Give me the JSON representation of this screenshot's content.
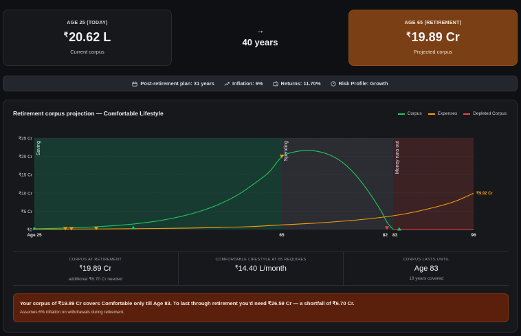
{
  "summary": {
    "now": {
      "label": "AGE 25 (TODAY)",
      "currency": "₹",
      "amount": "20.62 L",
      "sub": "Current corpus"
    },
    "arrow": "→",
    "years": "40 years",
    "retirement": {
      "label": "AGE 65 (RETIREMENT)",
      "currency": "₹",
      "amount": "19.89 Cr",
      "sub": "Projected corpus"
    }
  },
  "assumptions": [
    {
      "icon": "calendar-icon",
      "text": "Post-retirement plan: 31 years"
    },
    {
      "icon": "trend-icon",
      "text": "Inflation: 6%"
    },
    {
      "icon": "wallet-icon",
      "text": "Returns: 11.70%"
    },
    {
      "icon": "gauge-icon",
      "text": "Risk Profile: Growth"
    }
  ],
  "panel": {
    "title": "Retirement corpus projection — Comfortable Lifestyle",
    "legend": [
      {
        "name": "Corpus",
        "color": "#22c55e"
      },
      {
        "name": "Expenses",
        "color": "#f59e0b"
      },
      {
        "name": "Depleted Corpus",
        "color": "#ef4444"
      }
    ]
  },
  "chart_data": {
    "type": "line",
    "title": "Retirement corpus projection — Comfortable Lifestyle",
    "xlabel": "",
    "ylabel": "",
    "x_range": [
      25,
      96
    ],
    "ylim": [
      0,
      25
    ],
    "y_unit": "Cr",
    "y_ticks": [
      "₹0",
      "₹5 Cr",
      "₹10 Cr",
      "₹15 Cr",
      "₹20 Cr",
      "₹25 Cr"
    ],
    "x_tick_labels": [
      {
        "x": 25,
        "label": "Age 25"
      },
      {
        "x": 65,
        "label": "65"
      },
      {
        "x": 82,
        "label": "82"
      },
      {
        "x": 83,
        "label": "83"
      },
      {
        "x": 96,
        "label": "96"
      }
    ],
    "phases": [
      {
        "label": "Saving",
        "from": 25,
        "to": 65,
        "color": "#173b30"
      },
      {
        "label": "Spending",
        "from": 65,
        "to": 83,
        "color": "#2b2d33"
      },
      {
        "label": "Money runs out",
        "from": 83,
        "to": 96,
        "color": "#3d2224"
      }
    ],
    "series": [
      {
        "name": "Corpus",
        "color": "#22c55e",
        "points": [
          [
            25,
            0.21
          ],
          [
            28,
            0.3
          ],
          [
            31,
            0.45
          ],
          [
            34,
            0.66
          ],
          [
            37,
            0.95
          ],
          [
            40,
            1.35
          ],
          [
            43,
            1.9
          ],
          [
            46,
            2.65
          ],
          [
            49,
            3.7
          ],
          [
            52,
            5.1
          ],
          [
            55,
            7.0
          ],
          [
            58,
            9.6
          ],
          [
            61,
            13.1
          ],
          [
            63,
            15.8
          ],
          [
            65,
            19.89
          ],
          [
            67,
            21.2
          ],
          [
            69,
            21.6
          ],
          [
            71,
            21.3
          ],
          [
            73,
            20.2
          ],
          [
            75,
            18.1
          ],
          [
            77,
            14.8
          ],
          [
            79,
            10.4
          ],
          [
            81,
            5.2
          ],
          [
            82,
            2.0
          ],
          [
            83,
            0
          ]
        ]
      },
      {
        "name": "Expenses",
        "color": "#f59e0b",
        "points": [
          [
            25,
            0.07
          ],
          [
            30,
            0.1
          ],
          [
            35,
            0.14
          ],
          [
            40,
            0.2
          ],
          [
            45,
            0.28
          ],
          [
            50,
            0.39
          ],
          [
            55,
            0.55
          ],
          [
            60,
            0.8
          ],
          [
            65,
            1.25
          ],
          [
            70,
            1.7
          ],
          [
            75,
            2.3
          ],
          [
            80,
            3.1
          ],
          [
            85,
            4.3
          ],
          [
            90,
            6.2
          ],
          [
            93,
            7.7
          ],
          [
            96,
            9.92
          ]
        ],
        "end_label": "₹9.92 Cr"
      },
      {
        "name": "Depleted Corpus",
        "color": "#ef4444",
        "points": [
          [
            83,
            0
          ],
          [
            96,
            0
          ]
        ]
      }
    ],
    "markers": [
      {
        "x": 25,
        "y": 0.21,
        "shape": "dot",
        "color": "#22c55e"
      },
      {
        "x": 30,
        "y": 0.1,
        "shape": "triangle-down",
        "color": "#f59e0b"
      },
      {
        "x": 31,
        "y": 0.1,
        "shape": "triangle-down",
        "color": "#f59e0b"
      },
      {
        "x": 35,
        "y": 0.14,
        "shape": "triangle-down",
        "color": "#f59e0b"
      },
      {
        "x": 41,
        "y": 0.45,
        "shape": "triangle-up",
        "color": "#22c55e"
      },
      {
        "x": 65,
        "y": 19.89,
        "shape": "triangle-down",
        "color": "#f59e0b"
      },
      {
        "x": 82,
        "y": 0.3,
        "shape": "triangle-down",
        "color": "#ef4444"
      },
      {
        "x": 84,
        "y": 0.1,
        "shape": "triangle-up",
        "color": "#22c55e"
      }
    ],
    "grid": true,
    "legend_position": "top-right"
  },
  "stats": [
    {
      "key": "CORPUS AT RETIREMENT",
      "currency": "₹",
      "value": "19.89 Cr",
      "sub": "additional ₹6.70 Cr needed"
    },
    {
      "key": "COMFORTABLE LIFESTYLE AT 65 REQUIRES",
      "currency": "₹",
      "value": "14.40 L/month",
      "sub": ""
    },
    {
      "key": "CORPUS LASTS UNTIL",
      "currency": "",
      "value": "Age 83",
      "sub": "18 years covered"
    }
  ],
  "warning": {
    "main": "Your corpus of ₹19.89 Cr covers Comfortable only till Age 83. To last through retirement you'd need ₹26.59 Cr — a shortfall of ₹6.70 Cr.",
    "note": "Assumes 6% inflation on withdrawals during retirement."
  }
}
